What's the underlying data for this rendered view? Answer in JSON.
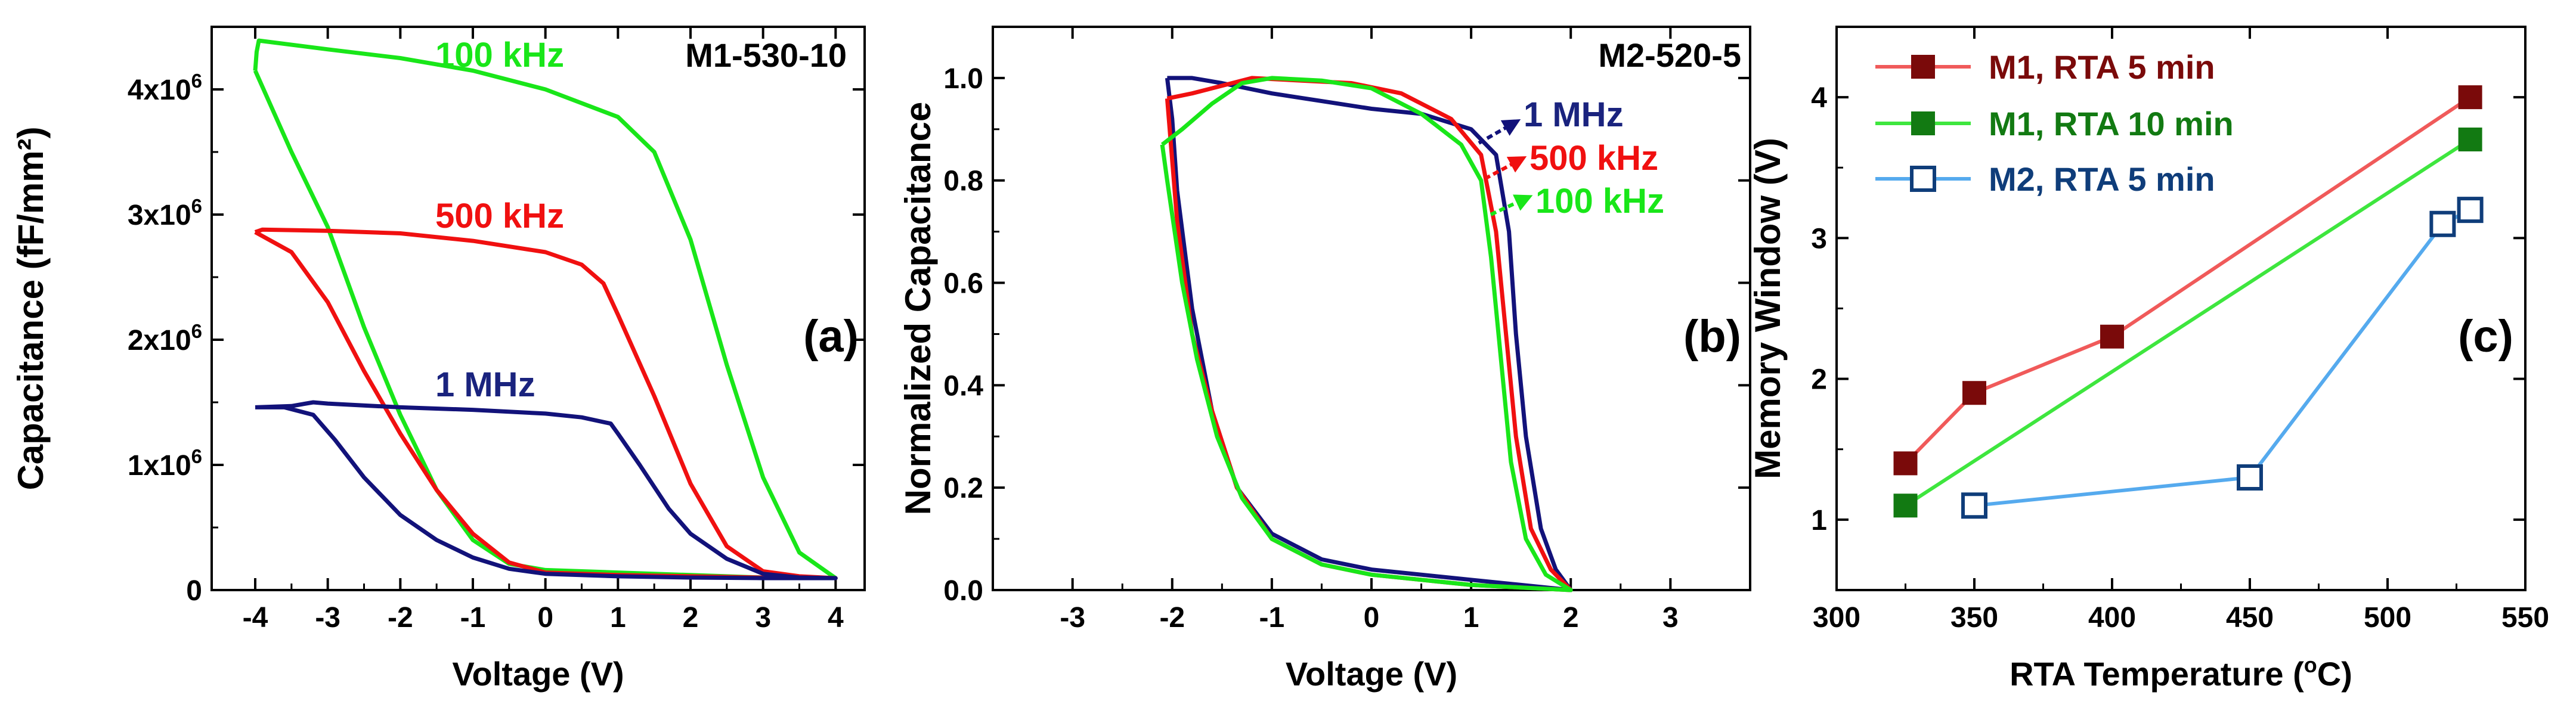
{
  "colors": {
    "green": "#19e619",
    "red": "#f01010",
    "navy": "#12127a",
    "darkred": "#7a0a0a",
    "mgreen": "#127a12",
    "lightgreen": "#3ee63e",
    "salmon": "#f05a5a",
    "lightblue": "#55aaee",
    "m2navy": "#0f3d7a",
    "textnavy": "#1a237e"
  },
  "chart_data": [
    {
      "panel": "a",
      "type": "line",
      "panel_label": "(a)",
      "sample_label": "M1-530-10",
      "xlabel": "Voltage (V)",
      "ylabel": "Capacitance (fF/mm²)",
      "xlim": [
        -4.6,
        4.4
      ],
      "ylim": [
        0,
        4500000
      ],
      "xticks": [
        "-4",
        "-3",
        "-2",
        "-1",
        "0",
        "1",
        "2",
        "3",
        "4"
      ],
      "xtick_values": [
        -4,
        -3,
        -2,
        -1,
        0,
        1,
        2,
        3,
        4
      ],
      "yticks": [
        "0",
        "1x10",
        "2x10",
        "3x10",
        "4x10"
      ],
      "ytick_values": [
        0,
        1000000,
        2000000,
        3000000,
        4000000
      ],
      "ytick_exponent": "6",
      "series": [
        {
          "name": "100 kHz",
          "label": "100 kHz",
          "color": "green",
          "points": [
            [
              -4.0,
              4150000
            ],
            [
              -3.98,
              4300000
            ],
            [
              -3.95,
              4390000
            ],
            [
              -3,
              4320000
            ],
            [
              -2,
              4250000
            ],
            [
              -1,
              4150000
            ],
            [
              0,
              4000000
            ],
            [
              1,
              3780000
            ],
            [
              1.5,
              3500000
            ],
            [
              2,
              2800000
            ],
            [
              2.5,
              1800000
            ],
            [
              3,
              900000
            ],
            [
              3.5,
              300000
            ],
            [
              4,
              95000
            ],
            [
              3,
              100000
            ],
            [
              2,
              120000
            ],
            [
              1,
              140000
            ],
            [
              0,
              160000
            ],
            [
              -0.5,
              210000
            ],
            [
              -1,
              400000
            ],
            [
              -1.5,
              800000
            ],
            [
              -2,
              1400000
            ],
            [
              -2.5,
              2100000
            ],
            [
              -3,
              2900000
            ],
            [
              -3.5,
              3500000
            ],
            [
              -4,
              4150000
            ]
          ]
        },
        {
          "name": "500 kHz",
          "label": "500 kHz",
          "color": "red",
          "points": [
            [
              -4.0,
              2860000
            ],
            [
              -3.9,
              2880000
            ],
            [
              -3,
              2870000
            ],
            [
              -2,
              2850000
            ],
            [
              -1,
              2790000
            ],
            [
              0,
              2700000
            ],
            [
              0.5,
              2600000
            ],
            [
              0.8,
              2450000
            ],
            [
              1,
              2200000
            ],
            [
              1.5,
              1550000
            ],
            [
              2,
              850000
            ],
            [
              2.5,
              350000
            ],
            [
              3,
              150000
            ],
            [
              3.5,
              110000
            ],
            [
              4,
              95000
            ],
            [
              3,
              100000
            ],
            [
              2,
              110000
            ],
            [
              1,
              120000
            ],
            [
              0,
              140000
            ],
            [
              -0.5,
              220000
            ],
            [
              -1,
              450000
            ],
            [
              -1.5,
              800000
            ],
            [
              -2,
              1250000
            ],
            [
              -2.5,
              1750000
            ],
            [
              -3,
              2300000
            ],
            [
              -3.5,
              2700000
            ],
            [
              -4,
              2860000
            ]
          ]
        },
        {
          "name": "1 MHz",
          "label": "1 MHz",
          "color": "navy",
          "points": [
            [
              -4.0,
              1460000
            ],
            [
              -3.5,
              1470000
            ],
            [
              -3.2,
              1500000
            ],
            [
              -3,
              1490000
            ],
            [
              -2,
              1460000
            ],
            [
              -1,
              1440000
            ],
            [
              0,
              1410000
            ],
            [
              0.5,
              1380000
            ],
            [
              0.9,
              1330000
            ],
            [
              1,
              1250000
            ],
            [
              1.3,
              1000000
            ],
            [
              1.7,
              650000
            ],
            [
              2,
              450000
            ],
            [
              2.5,
              250000
            ],
            [
              3,
              130000
            ],
            [
              3.5,
              100000
            ],
            [
              4,
              95000
            ],
            [
              3,
              95000
            ],
            [
              2,
              100000
            ],
            [
              1,
              110000
            ],
            [
              0,
              130000
            ],
            [
              -0.5,
              170000
            ],
            [
              -1,
              260000
            ],
            [
              -1.5,
              400000
            ],
            [
              -2,
              600000
            ],
            [
              -2.5,
              900000
            ],
            [
              -2.9,
              1200000
            ],
            [
              -3.2,
              1400000
            ],
            [
              -3.6,
              1460000
            ],
            [
              -4,
              1460000
            ]
          ]
        }
      ]
    },
    {
      "panel": "b",
      "type": "line",
      "panel_label": "(b)",
      "sample_label": "M2-520-5",
      "xlabel": "Voltage (V)",
      "ylabel": "Normalized Capacitance",
      "xlim": [
        -3.8,
        3.8
      ],
      "ylim": [
        0,
        1.1
      ],
      "xticks": [
        "-3",
        "-2",
        "-1",
        "0",
        "1",
        "2",
        "3"
      ],
      "xtick_values": [
        -3,
        -2,
        -1,
        0,
        1,
        2,
        3
      ],
      "yticks": [
        "0.0",
        "0.2",
        "0.4",
        "0.6",
        "0.8",
        "1.0"
      ],
      "ytick_values": [
        0,
        0.2,
        0.4,
        0.6,
        0.8,
        1.0
      ],
      "series": [
        {
          "name": "1 MHz",
          "label": "1 MHz",
          "color": "navy",
          "points": [
            [
              -2.05,
              1.0
            ],
            [
              -1.8,
              1.0
            ],
            [
              -1.5,
              0.99
            ],
            [
              -1,
              0.97
            ],
            [
              -0.5,
              0.955
            ],
            [
              0,
              0.94
            ],
            [
              0.5,
              0.93
            ],
            [
              1.0,
              0.9
            ],
            [
              1.25,
              0.85
            ],
            [
              1.38,
              0.7
            ],
            [
              1.45,
              0.5
            ],
            [
              1.55,
              0.3
            ],
            [
              1.7,
              0.12
            ],
            [
              1.85,
              0.04
            ],
            [
              2.0,
              0.0
            ],
            [
              1.5,
              0.01
            ],
            [
              1.0,
              0.02
            ],
            [
              0.5,
              0.03
            ],
            [
              0,
              0.04
            ],
            [
              -0.5,
              0.06
            ],
            [
              -1,
              0.11
            ],
            [
              -1.35,
              0.2
            ],
            [
              -1.6,
              0.35
            ],
            [
              -1.8,
              0.55
            ],
            [
              -1.95,
              0.78
            ],
            [
              -2.0,
              0.92
            ],
            [
              -2.05,
              1.0
            ]
          ]
        },
        {
          "name": "500 kHz",
          "label": "500 kHz",
          "color": "red",
          "points": [
            [
              -2.05,
              0.96
            ],
            [
              -1.8,
              0.97
            ],
            [
              -1.6,
              0.98
            ],
            [
              -1.4,
              0.99
            ],
            [
              -1.2,
              1.0
            ],
            [
              -0.7,
              0.995
            ],
            [
              -0.2,
              0.99
            ],
            [
              0.3,
              0.97
            ],
            [
              0.8,
              0.92
            ],
            [
              1.1,
              0.85
            ],
            [
              1.25,
              0.7
            ],
            [
              1.35,
              0.5
            ],
            [
              1.45,
              0.3
            ],
            [
              1.6,
              0.12
            ],
            [
              1.8,
              0.04
            ],
            [
              2.0,
              0.0
            ],
            [
              1.5,
              0.005
            ],
            [
              1,
              0.01
            ],
            [
              0.5,
              0.02
            ],
            [
              0,
              0.03
            ],
            [
              -0.5,
              0.05
            ],
            [
              -1,
              0.1
            ],
            [
              -1.35,
              0.2
            ],
            [
              -1.6,
              0.35
            ],
            [
              -1.8,
              0.5
            ],
            [
              -1.95,
              0.72
            ],
            [
              -2.05,
              0.96
            ]
          ]
        },
        {
          "name": "100 kHz",
          "label": "100 kHz",
          "color": "green",
          "points": [
            [
              -2.1,
              0.87
            ],
            [
              -1.9,
              0.9
            ],
            [
              -1.6,
              0.95
            ],
            [
              -1.3,
              0.99
            ],
            [
              -1.0,
              1.0
            ],
            [
              -0.5,
              0.995
            ],
            [
              0,
              0.98
            ],
            [
              0.5,
              0.93
            ],
            [
              0.9,
              0.87
            ],
            [
              1.1,
              0.8
            ],
            [
              1.2,
              0.65
            ],
            [
              1.3,
              0.45
            ],
            [
              1.4,
              0.25
            ],
            [
              1.55,
              0.1
            ],
            [
              1.75,
              0.03
            ],
            [
              2.0,
              0.0
            ],
            [
              1.5,
              0.005
            ],
            [
              1,
              0.01
            ],
            [
              0.5,
              0.02
            ],
            [
              0,
              0.03
            ],
            [
              -0.5,
              0.05
            ],
            [
              -1,
              0.1
            ],
            [
              -1.3,
              0.18
            ],
            [
              -1.55,
              0.3
            ],
            [
              -1.75,
              0.45
            ],
            [
              -1.9,
              0.6
            ],
            [
              -2.05,
              0.8
            ],
            [
              -2.1,
              0.87
            ]
          ]
        }
      ],
      "arrows": [
        {
          "text": "1 MHz",
          "color": "navy"
        },
        {
          "text": "500 kHz",
          "color": "red"
        },
        {
          "text": "100 kHz",
          "color": "green"
        }
      ]
    },
    {
      "panel": "c",
      "type": "line",
      "panel_label": "(c)",
      "xlabel": "RTA Temperature (",
      "xlabel_degree": "o",
      "xlabel_tail": "C)",
      "ylabel": "Memory Window (V)",
      "xlim": [
        300,
        550
      ],
      "ylim": [
        0.5,
        4.5
      ],
      "xticks": [
        "300",
        "350",
        "400",
        "450",
        "500",
        "550"
      ],
      "xtick_values": [
        300,
        350,
        400,
        450,
        500,
        550
      ],
      "yticks": [
        "1",
        "2",
        "3",
        "4"
      ],
      "ytick_values": [
        1,
        2,
        3,
        4
      ],
      "series": [
        {
          "name": "M1, RTA 5 min",
          "line_color": "salmon",
          "marker_color": "darkred",
          "text_color": "darkred",
          "filled": true,
          "x": [
            325,
            350,
            400,
            530
          ],
          "y": [
            1.4,
            1.9,
            2.3,
            4.0
          ]
        },
        {
          "name": "M1, RTA 10 min",
          "line_color": "lightgreen",
          "marker_color": "mgreen",
          "text_color": "mgreen",
          "filled": true,
          "x": [
            325,
            530
          ],
          "y": [
            1.1,
            3.7
          ]
        },
        {
          "name": "M2, RTA 5 min",
          "line_color": "lightblue",
          "marker_color": "m2navy",
          "text_color": "m2navy",
          "filled": false,
          "x": [
            350,
            450,
            520,
            530
          ],
          "y": [
            1.1,
            1.3,
            3.1,
            3.2
          ]
        }
      ]
    }
  ]
}
